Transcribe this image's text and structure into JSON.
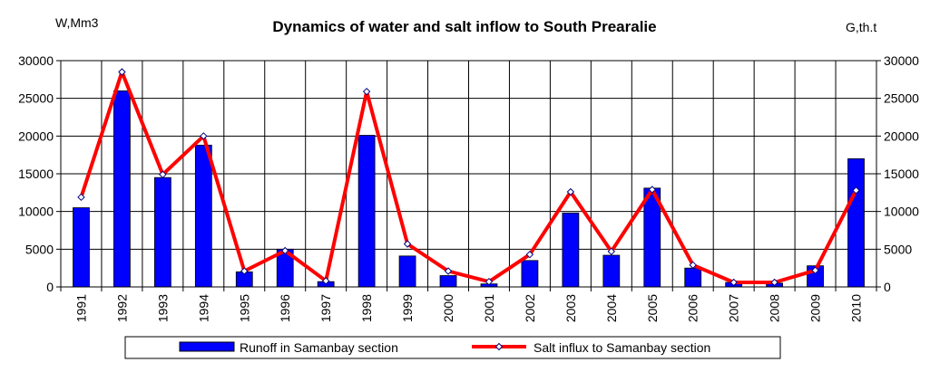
{
  "chart_data": {
    "type": "bar+line",
    "title": "Dynamics of water and salt inflow to South Prearalie",
    "ylabel_left": "W,Mm3",
    "ylabel_right": "G,th.t",
    "ylim": [
      0,
      30000
    ],
    "yticks": [
      "0",
      "5000",
      "10000",
      "15000",
      "20000",
      "25000",
      "30000"
    ],
    "categories": [
      "1991",
      "1992",
      "1993",
      "1994",
      "1995",
      "1996",
      "1997",
      "1998",
      "1999",
      "2000",
      "2001",
      "2002",
      "2003",
      "2004",
      "2005",
      "2006",
      "2007",
      "2008",
      "2009",
      "2010"
    ],
    "series": [
      {
        "name": "Runoff in Samanbay section",
        "kind": "bar",
        "axis": "left",
        "color": "#0000ff",
        "values": [
          10500,
          26000,
          14500,
          18800,
          2000,
          5000,
          700,
          20100,
          4100,
          1500,
          400,
          3500,
          9800,
          4200,
          13100,
          2500,
          600,
          500,
          2800,
          17000
        ]
      },
      {
        "name": "Salt influx to Samanbay section",
        "kind": "line",
        "axis": "right",
        "color": "#ff0000",
        "values": [
          11900,
          28500,
          14900,
          20000,
          2100,
          4800,
          800,
          25900,
          5700,
          2100,
          700,
          4300,
          12600,
          4700,
          12900,
          2900,
          600,
          600,
          2200,
          12800
        ]
      }
    ],
    "grid": true,
    "legend": "bottom"
  }
}
